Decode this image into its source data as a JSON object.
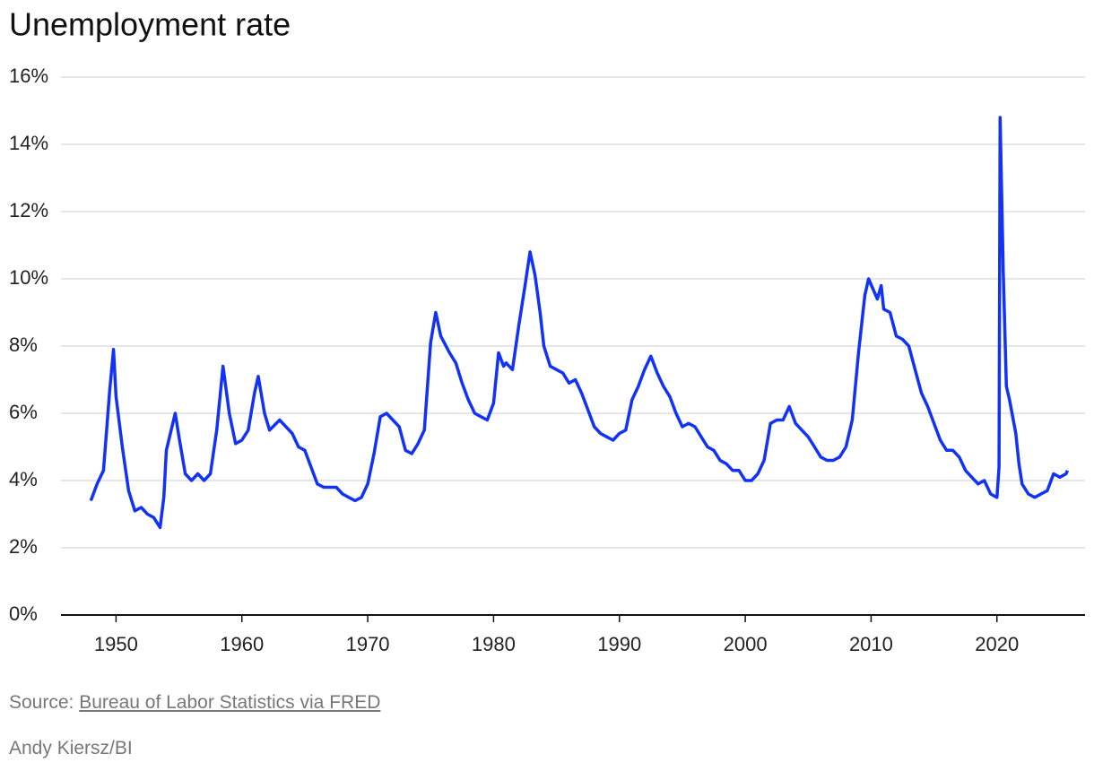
{
  "chart_data": {
    "type": "line",
    "title": "Unemployment rate",
    "xlim": [
      1944.2,
      2027
    ],
    "xticks": [
      1950,
      1960,
      1970,
      1980,
      1990,
      2000,
      2010,
      2020
    ],
    "ylim": [
      0,
      16
    ],
    "yticks": [
      {
        "value": 0,
        "label": "0%"
      },
      {
        "value": 2,
        "label": "2%"
      },
      {
        "value": 4,
        "label": "4%"
      },
      {
        "value": 6,
        "label": "6%"
      },
      {
        "value": 8,
        "label": "8%"
      },
      {
        "value": 10,
        "label": "10%"
      },
      {
        "value": 12,
        "label": "12%"
      },
      {
        "value": 14,
        "label": "14%"
      },
      {
        "value": 16,
        "label": "16%"
      }
    ],
    "grid": true,
    "series": [
      {
        "color": "#1232f5",
        "x": [
          1948.0,
          1948.5,
          1949.0,
          1949.5,
          1949.8,
          1950.0,
          1950.5,
          1951.0,
          1951.5,
          1952.0,
          1952.5,
          1953.0,
          1953.5,
          1953.8,
          1954.0,
          1954.7,
          1955.0,
          1955.5,
          1956.0,
          1956.5,
          1957.0,
          1957.5,
          1958.0,
          1958.5,
          1959.0,
          1959.5,
          1960.0,
          1960.5,
          1961.0,
          1961.3,
          1961.8,
          1962.2,
          1963.0,
          1963.5,
          1964.0,
          1964.5,
          1965.0,
          1965.5,
          1966.0,
          1966.5,
          1967.0,
          1967.5,
          1968.0,
          1968.5,
          1969.0,
          1969.5,
          1970.0,
          1970.5,
          1971.0,
          1971.5,
          1972.0,
          1972.5,
          1973.0,
          1973.5,
          1974.0,
          1974.5,
          1975.0,
          1975.4,
          1975.8,
          1976.5,
          1977.0,
          1977.5,
          1978.0,
          1978.5,
          1979.0,
          1979.5,
          1980.0,
          1980.4,
          1980.8,
          1981.0,
          1981.5,
          1982.0,
          1982.5,
          1982.9,
          1983.3,
          1983.7,
          1984.0,
          1984.5,
          1985.0,
          1985.5,
          1986.0,
          1986.5,
          1987.0,
          1987.5,
          1988.0,
          1988.5,
          1989.0,
          1989.5,
          1990.0,
          1990.5,
          1991.0,
          1991.5,
          1992.0,
          1992.5,
          1993.0,
          1993.5,
          1994.0,
          1994.5,
          1995.0,
          1995.5,
          1996.0,
          1996.5,
          1997.0,
          1997.5,
          1998.0,
          1998.5,
          1999.0,
          1999.5,
          2000.0,
          2000.5,
          2001.0,
          2001.5,
          2002.0,
          2002.5,
          2003.0,
          2003.5,
          2004.0,
          2004.5,
          2005.0,
          2005.5,
          2006.0,
          2006.5,
          2007.0,
          2007.5,
          2008.0,
          2008.5,
          2009.0,
          2009.5,
          2009.8,
          2010.5,
          2010.8,
          2011.0,
          2011.5,
          2012.0,
          2012.5,
          2013.0,
          2013.5,
          2014.0,
          2014.5,
          2015.0,
          2015.5,
          2016.0,
          2016.5,
          2017.0,
          2017.5,
          2018.0,
          2018.5,
          2019.0,
          2019.5,
          2020.0,
          2020.17,
          2020.25,
          2020.5,
          2020.75,
          2021.0,
          2021.5,
          2021.75,
          2022.0,
          2022.5,
          2023.0,
          2023.5,
          2024.0,
          2024.5,
          2025.0,
          2025.5,
          2025.6
        ],
        "values": [
          3.4,
          3.9,
          4.3,
          6.7,
          7.9,
          6.5,
          5.0,
          3.7,
          3.1,
          3.2,
          3.0,
          2.9,
          2.6,
          3.5,
          4.9,
          6.0,
          5.3,
          4.2,
          4.0,
          4.2,
          4.0,
          4.2,
          5.5,
          7.4,
          6.0,
          5.1,
          5.2,
          5.5,
          6.6,
          7.1,
          6.0,
          5.5,
          5.8,
          5.6,
          5.4,
          5.0,
          4.9,
          4.4,
          3.9,
          3.8,
          3.8,
          3.8,
          3.6,
          3.5,
          3.4,
          3.5,
          3.9,
          4.8,
          5.9,
          6.0,
          5.8,
          5.6,
          4.9,
          4.8,
          5.1,
          5.5,
          8.1,
          9.0,
          8.3,
          7.8,
          7.5,
          6.9,
          6.4,
          6.0,
          5.9,
          5.8,
          6.3,
          7.8,
          7.4,
          7.5,
          7.3,
          8.6,
          9.8,
          10.8,
          10.1,
          9.0,
          8.0,
          7.4,
          7.3,
          7.2,
          6.9,
          7.0,
          6.6,
          6.1,
          5.6,
          5.4,
          5.3,
          5.2,
          5.4,
          5.5,
          6.4,
          6.8,
          7.3,
          7.7,
          7.2,
          6.8,
          6.5,
          6.0,
          5.6,
          5.7,
          5.6,
          5.3,
          5.0,
          4.9,
          4.6,
          4.5,
          4.3,
          4.3,
          4.0,
          4.0,
          4.2,
          4.6,
          5.7,
          5.8,
          5.8,
          6.2,
          5.7,
          5.5,
          5.3,
          5.0,
          4.7,
          4.6,
          4.6,
          4.7,
          5.0,
          5.8,
          7.8,
          9.5,
          10.0,
          9.4,
          9.8,
          9.1,
          9.0,
          8.3,
          8.2,
          8.0,
          7.3,
          6.6,
          6.2,
          5.7,
          5.2,
          4.9,
          4.9,
          4.7,
          4.3,
          4.1,
          3.9,
          4.0,
          3.6,
          3.5,
          4.4,
          14.8,
          10.2,
          6.8,
          6.4,
          5.4,
          4.5,
          3.9,
          3.6,
          3.5,
          3.6,
          3.7,
          4.2,
          4.1,
          4.2,
          4.3
        ]
      }
    ],
    "source_prefix": "Source:",
    "source_link": "Bureau of Labor Statistics via FRED",
    "credit": "Andy Kiersz/BI"
  }
}
